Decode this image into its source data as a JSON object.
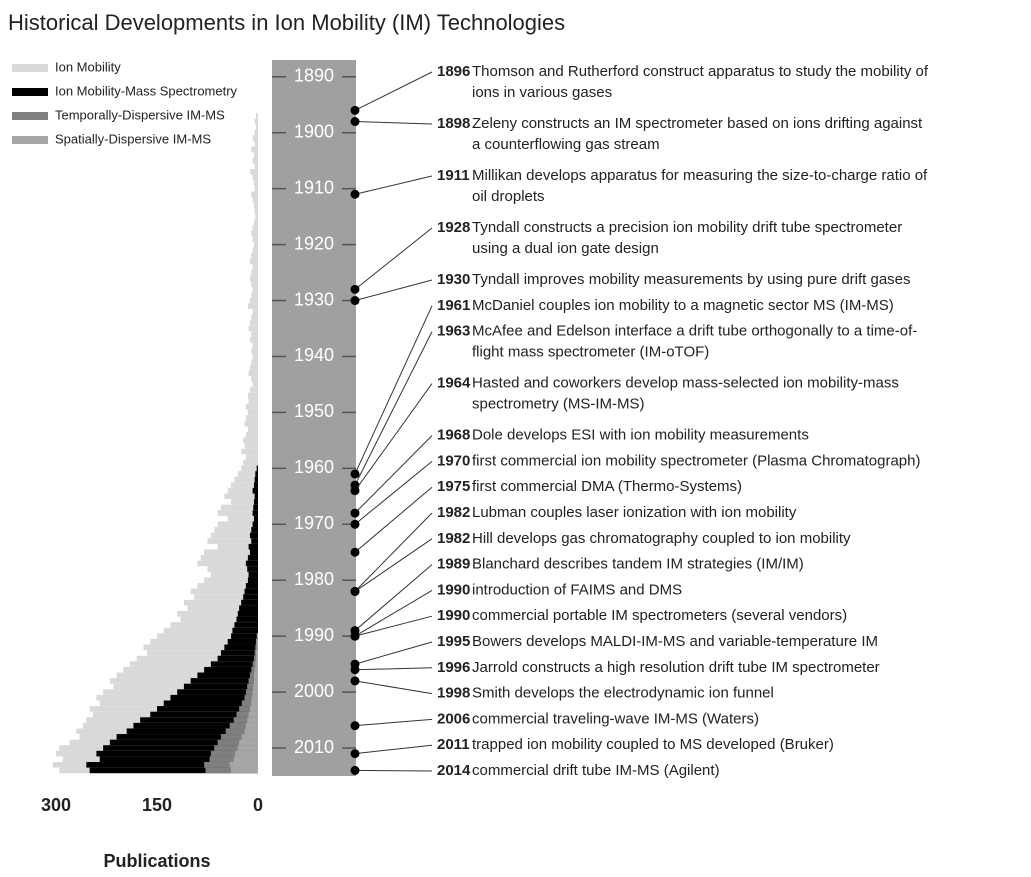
{
  "title": "Historical Developments in Ion Mobility (IM) Technologies",
  "chart_data": [
    {
      "type": "bar",
      "orientation": "horizontal",
      "xlabel": "Publications",
      "xlim": [
        300,
        0
      ],
      "xticks": [
        300,
        150,
        0
      ],
      "ylim": [
        1887,
        2015
      ],
      "legend": "upper left",
      "y": [
        1895,
        1896,
        1897,
        1898,
        1899,
        1900,
        1901,
        1902,
        1903,
        1904,
        1905,
        1906,
        1907,
        1908,
        1909,
        1910,
        1911,
        1912,
        1913,
        1914,
        1915,
        1916,
        1917,
        1918,
        1919,
        1920,
        1921,
        1922,
        1923,
        1924,
        1925,
        1926,
        1927,
        1928,
        1929,
        1930,
        1931,
        1932,
        1933,
        1934,
        1935,
        1936,
        1937,
        1938,
        1939,
        1940,
        1941,
        1942,
        1943,
        1944,
        1945,
        1946,
        1947,
        1948,
        1949,
        1950,
        1951,
        1952,
        1953,
        1954,
        1955,
        1956,
        1957,
        1958,
        1959,
        1960,
        1961,
        1962,
        1963,
        1964,
        1965,
        1966,
        1967,
        1968,
        1969,
        1970,
        1971,
        1972,
        1973,
        1974,
        1975,
        1976,
        1977,
        1978,
        1979,
        1980,
        1981,
        1982,
        1983,
        1984,
        1985,
        1986,
        1987,
        1988,
        1989,
        1990,
        1991,
        1992,
        1993,
        1994,
        1995,
        1996,
        1997,
        1998,
        1999,
        2000,
        2001,
        2002,
        2003,
        2004,
        2005,
        2006,
        2007,
        2008,
        2009,
        2010,
        2011,
        2012,
        2013,
        2014
      ],
      "series": [
        {
          "name": "Ion Mobility",
          "color": "#d9d9d9",
          "values": [
            0,
            0,
            3,
            5,
            3,
            5,
            8,
            5,
            10,
            6,
            8,
            5,
            12,
            8,
            6,
            5,
            10,
            8,
            6,
            5,
            4,
            6,
            8,
            10,
            8,
            6,
            8,
            10,
            12,
            8,
            10,
            12,
            10,
            8,
            10,
            12,
            15,
            8,
            10,
            12,
            14,
            10,
            12,
            8,
            10,
            8,
            10,
            12,
            14,
            10,
            8,
            12,
            15,
            14,
            18,
            15,
            18,
            20,
            15,
            18,
            22,
            20,
            25,
            18,
            22,
            25,
            30,
            35,
            40,
            45,
            50,
            40,
            55,
            60,
            45,
            60,
            65,
            70,
            75,
            60,
            80,
            85,
            90,
            75,
            70,
            80,
            90,
            100,
            95,
            110,
            105,
            120,
            115,
            130,
            140,
            150,
            160,
            170,
            165,
            180,
            190,
            200,
            210,
            220,
            215,
            230,
            240,
            235,
            250,
            245,
            255,
            260,
            270,
            265,
            280,
            295,
            300,
            290,
            305,
            295
          ]
        },
        {
          "name": "Ion Mobility-Mass Spectrometry",
          "color": "#000000",
          "values": [
            0,
            0,
            0,
            0,
            0,
            0,
            0,
            0,
            0,
            0,
            0,
            0,
            0,
            0,
            0,
            0,
            0,
            0,
            0,
            0,
            0,
            0,
            0,
            0,
            0,
            0,
            0,
            0,
            0,
            0,
            0,
            0,
            0,
            0,
            0,
            0,
            0,
            0,
            0,
            0,
            0,
            0,
            0,
            0,
            0,
            0,
            0,
            0,
            0,
            0,
            0,
            0,
            0,
            0,
            0,
            0,
            0,
            0,
            0,
            0,
            0,
            0,
            0,
            0,
            0,
            2,
            4,
            5,
            6,
            8,
            5,
            6,
            7,
            8,
            6,
            8,
            10,
            12,
            10,
            14,
            12,
            15,
            18,
            16,
            14,
            15,
            18,
            20,
            22,
            25,
            28,
            30,
            32,
            35,
            38,
            40,
            45,
            50,
            55,
            60,
            70,
            80,
            90,
            100,
            110,
            120,
            130,
            140,
            150,
            160,
            175,
            185,
            195,
            210,
            220,
            230,
            240,
            235,
            255,
            250
          ]
        },
        {
          "name": "Temporally-Dispersive IM-MS",
          "color": "#7f7f7f",
          "values": [
            0,
            0,
            0,
            0,
            0,
            0,
            0,
            0,
            0,
            0,
            0,
            0,
            0,
            0,
            0,
            0,
            0,
            0,
            0,
            0,
            0,
            0,
            0,
            0,
            0,
            0,
            0,
            0,
            0,
            0,
            0,
            0,
            0,
            0,
            0,
            0,
            0,
            0,
            0,
            0,
            0,
            0,
            0,
            0,
            0,
            0,
            0,
            0,
            0,
            0,
            0,
            0,
            0,
            0,
            0,
            0,
            0,
            0,
            0,
            0,
            0,
            0,
            0,
            0,
            0,
            0,
            0,
            0,
            0,
            0,
            0,
            0,
            0,
            0,
            0,
            0,
            0,
            0,
            0,
            0,
            0,
            0,
            0,
            0,
            0,
            0,
            0,
            0,
            0,
            0,
            0,
            0,
            0,
            0,
            0,
            2,
            3,
            4,
            5,
            6,
            8,
            10,
            12,
            14,
            16,
            18,
            20,
            24,
            28,
            32,
            36,
            42,
            48,
            55,
            60,
            65,
            70,
            72,
            80,
            78
          ]
        },
        {
          "name": "Spatially-Dispersive IM-MS",
          "color": "#a6a6a6",
          "values": [
            0,
            0,
            0,
            0,
            0,
            0,
            0,
            0,
            0,
            0,
            0,
            0,
            0,
            0,
            0,
            0,
            0,
            0,
            0,
            0,
            0,
            0,
            0,
            0,
            0,
            0,
            0,
            0,
            0,
            0,
            0,
            0,
            0,
            0,
            0,
            0,
            0,
            0,
            0,
            0,
            0,
            0,
            0,
            0,
            0,
            0,
            0,
            0,
            0,
            0,
            0,
            0,
            0,
            0,
            0,
            0,
            0,
            0,
            0,
            0,
            0,
            0,
            0,
            0,
            0,
            0,
            0,
            0,
            0,
            0,
            0,
            0,
            0,
            0,
            0,
            0,
            0,
            0,
            0,
            0,
            0,
            0,
            0,
            0,
            0,
            0,
            0,
            0,
            0,
            0,
            0,
            0,
            0,
            0,
            0,
            1,
            2,
            2,
            3,
            3,
            4,
            5,
            6,
            6,
            7,
            8,
            9,
            10,
            12,
            14,
            16,
            18,
            20,
            24,
            28,
            30,
            34,
            36,
            42,
            40
          ]
        }
      ]
    },
    {
      "type": "timeline",
      "ylim": [
        1887,
        2015
      ],
      "yticks": [
        1890,
        1900,
        1910,
        1920,
        1930,
        1940,
        1950,
        1960,
        1970,
        1980,
        1990,
        2000,
        2010
      ],
      "color": "#a0a0a0",
      "events": [
        {
          "year": 1896,
          "text": [
            "Thomson and Rutherford construct apparatus to study the mobility of",
            "ions in various gases"
          ]
        },
        {
          "year": 1898,
          "text": [
            "Zeleny constructs an IM spectrometer based on ions drifting against",
            "a counterflowing gas stream"
          ]
        },
        {
          "year": 1911,
          "text": [
            "Millikan develops apparatus for measuring the size-to-charge ratio of",
            "oil droplets"
          ]
        },
        {
          "year": 1928,
          "text": [
            "Tyndall constructs a precision ion mobility drift tube spectrometer",
            "using a dual ion gate design"
          ]
        },
        {
          "year": 1930,
          "text": [
            "Tyndall improves mobility measurements by using pure drift gases"
          ]
        },
        {
          "year": 1961,
          "text": [
            "McDaniel couples ion mobility to a magnetic sector MS (IM-MS)"
          ]
        },
        {
          "year": 1963,
          "text": [
            "McAfee and Edelson interface a drift tube orthogonally to a time-of-",
            "flight mass spectrometer (IM-oTOF)"
          ]
        },
        {
          "year": 1964,
          "text": [
            "Hasted and coworkers develop mass-selected ion mobility-mass",
            "spectrometry (MS-IM-MS)"
          ]
        },
        {
          "year": 1968,
          "text": [
            "Dole develops ESI with ion mobility measurements"
          ]
        },
        {
          "year": 1970,
          "text": [
            "first commercial ion mobility spectrometer (Plasma Chromatograph)"
          ]
        },
        {
          "year": 1975,
          "text": [
            "first commercial DMA (Thermo-Systems)"
          ]
        },
        {
          "year": 1982,
          "text": [
            "Lubman couples laser ionization with ion mobility"
          ]
        },
        {
          "year": 1982,
          "text": [
            "Hill develops gas chromatography coupled to ion mobility"
          ]
        },
        {
          "year": 1989,
          "text": [
            "Blanchard describes tandem IM strategies (IM/IM)"
          ]
        },
        {
          "year": 1990,
          "text": [
            "introduction of FAIMS and DMS"
          ]
        },
        {
          "year": 1990,
          "text": [
            "commercial portable IM spectrometers (several vendors)"
          ]
        },
        {
          "year": 1995,
          "text": [
            "Bowers develops MALDI-IM-MS and variable-temperature IM"
          ]
        },
        {
          "year": 1996,
          "text": [
            "Jarrold constructs a high resolution drift tube IM spectrometer"
          ]
        },
        {
          "year": 1998,
          "text": [
            "Smith develops the electrodynamic ion funnel"
          ]
        },
        {
          "year": 2006,
          "text": [
            "commercial traveling-wave IM-MS (Waters)"
          ]
        },
        {
          "year": 2011,
          "text": [
            "trapped ion mobility coupled to MS developed (Bruker)"
          ]
        },
        {
          "year": 2014,
          "text": [
            "commercial drift tube IM-MS (Agilent)"
          ]
        }
      ]
    }
  ]
}
